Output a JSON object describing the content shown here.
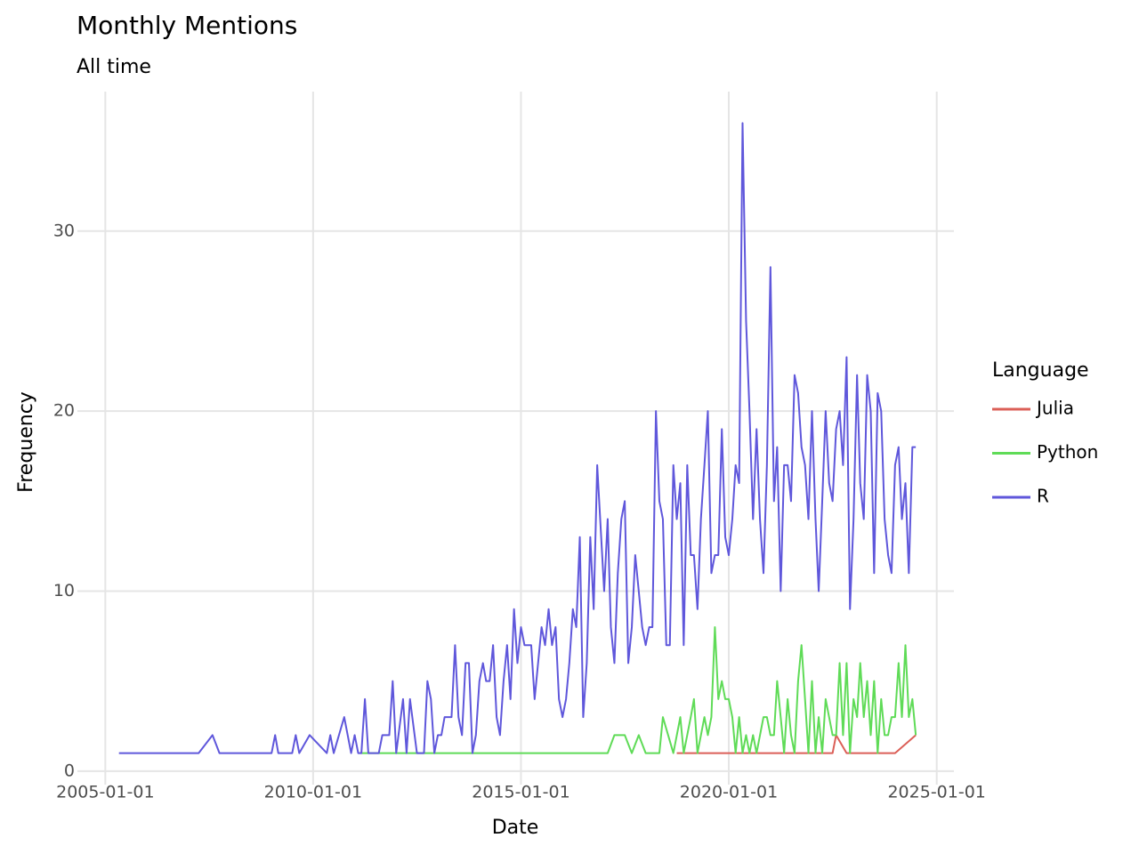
{
  "chart_data": {
    "type": "line",
    "title": "Monthly Mentions",
    "subtitle": "All time",
    "x_label": "Date",
    "y_label": "Frequency",
    "legend_title": "Language",
    "legend_position": "right",
    "grid": true,
    "xlim": [
      "2004-05-01",
      "2025-06-01"
    ],
    "xticks": [
      "2005-01-01",
      "2010-01-01",
      "2015-01-01",
      "2020-01-01",
      "2025-01-01"
    ],
    "ylim": [
      -0.75,
      37.75
    ],
    "yticks": [
      0,
      10,
      20,
      30
    ],
    "series": [
      {
        "name": "Julia",
        "color": "#db5f57",
        "x": [
          "2018-10-01",
          "2022-07-01",
          "2022-08-01",
          "2022-11-01",
          "2024-01-01",
          "2024-07-01"
        ],
        "values": [
          1,
          1,
          2,
          1,
          1,
          2
        ]
      },
      {
        "name": "Python",
        "color": "#5fdb57",
        "x": [
          "2011-03-01",
          "2017-02-01",
          "2017-04-01",
          "2017-07-01",
          "2017-09-01",
          "2017-11-01",
          "2018-01-01",
          "2018-05-01",
          "2018-06-01",
          "2018-09-01",
          "2018-11-01",
          "2018-12-01",
          "2019-02-01",
          "2019-03-01",
          "2019-04-01",
          "2019-06-01",
          "2019-07-01",
          "2019-08-01",
          "2019-09-01",
          "2019-10-01",
          "2019-11-01",
          "2019-12-01",
          "2020-01-01",
          "2020-02-01",
          "2020-03-01",
          "2020-04-01",
          "2020-05-01",
          "2020-06-01",
          "2020-07-01",
          "2020-08-01",
          "2020-09-01",
          "2020-11-01",
          "2020-12-01",
          "2021-01-01",
          "2021-02-01",
          "2021-03-01",
          "2021-04-01",
          "2021-05-01",
          "2021-06-01",
          "2021-07-01",
          "2021-08-01",
          "2021-09-01",
          "2021-10-01",
          "2021-11-01",
          "2021-12-01",
          "2022-01-01",
          "2022-02-01",
          "2022-03-01",
          "2022-04-01",
          "2022-05-01",
          "2022-07-01",
          "2022-08-01",
          "2022-09-01",
          "2022-10-01",
          "2022-11-01",
          "2022-12-01",
          "2023-01-01",
          "2023-02-01",
          "2023-03-01",
          "2023-04-01",
          "2023-05-01",
          "2023-06-01",
          "2023-07-01",
          "2023-08-01",
          "2023-09-01",
          "2023-10-01",
          "2023-11-01",
          "2023-12-01",
          "2024-01-01",
          "2024-02-01",
          "2024-03-01",
          "2024-04-01",
          "2024-05-01",
          "2024-06-01",
          "2024-07-01"
        ],
        "values": [
          1,
          1,
          2,
          2,
          1,
          2,
          1,
          1,
          3,
          1,
          3,
          1,
          3,
          4,
          1,
          3,
          2,
          3,
          8,
          4,
          5,
          4,
          4,
          3,
          1,
          3,
          1,
          2,
          1,
          2,
          1,
          3,
          3,
          2,
          2,
          5,
          3,
          1,
          4,
          2,
          1,
          5,
          7,
          4,
          1,
          5,
          1,
          3,
          1,
          4,
          2,
          2,
          6,
          2,
          6,
          1,
          4,
          3,
          6,
          3,
          5,
          2,
          5,
          1,
          4,
          2,
          2,
          3,
          3,
          6,
          3,
          7,
          3,
          4,
          2
        ]
      },
      {
        "name": "R",
        "color": "#5f57db",
        "x": [
          "2005-05-01",
          "2007-04-01",
          "2007-08-01",
          "2007-10-01",
          "2009-01-01",
          "2009-02-01",
          "2009-03-01",
          "2009-07-01",
          "2009-08-01",
          "2009-09-01",
          "2009-12-01",
          "2010-05-01",
          "2010-06-01",
          "2010-07-01",
          "2010-10-01",
          "2010-12-01",
          "2011-01-01",
          "2011-02-01",
          "2011-03-01",
          "2011-04-01",
          "2011-05-01",
          "2011-08-01",
          "2011-09-01",
          "2011-11-01",
          "2011-12-01",
          "2012-01-01",
          "2012-03-01",
          "2012-04-01",
          "2012-05-01",
          "2012-07-01",
          "2012-09-01",
          "2012-10-01",
          "2012-11-01",
          "2012-12-01",
          "2013-01-01",
          "2013-02-01",
          "2013-03-01",
          "2013-05-01",
          "2013-06-01",
          "2013-07-01",
          "2013-08-01",
          "2013-09-01",
          "2013-10-01",
          "2013-11-01",
          "2013-12-01",
          "2014-01-01",
          "2014-02-01",
          "2014-03-01",
          "2014-04-01",
          "2014-05-01",
          "2014-06-01",
          "2014-07-01",
          "2014-08-01",
          "2014-09-01",
          "2014-10-01",
          "2014-11-01",
          "2014-12-01",
          "2015-01-01",
          "2015-02-01",
          "2015-04-01",
          "2015-05-01",
          "2015-07-01",
          "2015-08-01",
          "2015-09-01",
          "2015-10-01",
          "2015-11-01",
          "2015-12-01",
          "2016-01-01",
          "2016-02-01",
          "2016-03-01",
          "2016-04-01",
          "2016-05-01",
          "2016-06-01",
          "2016-07-01",
          "2016-08-01",
          "2016-09-01",
          "2016-10-01",
          "2016-11-01",
          "2017-01-01",
          "2017-02-01",
          "2017-03-01",
          "2017-04-01",
          "2017-05-01",
          "2017-06-01",
          "2017-07-01",
          "2017-08-01",
          "2017-09-01",
          "2017-10-01",
          "2017-11-01",
          "2017-12-01",
          "2018-01-01",
          "2018-02-01",
          "2018-03-01",
          "2018-04-01",
          "2018-05-01",
          "2018-06-01",
          "2018-07-01",
          "2018-08-01",
          "2018-09-01",
          "2018-10-01",
          "2018-11-01",
          "2018-12-01",
          "2019-01-01",
          "2019-02-01",
          "2019-03-01",
          "2019-04-01",
          "2019-05-01",
          "2019-06-01",
          "2019-07-01",
          "2019-08-01",
          "2019-09-01",
          "2019-10-01",
          "2019-11-01",
          "2019-12-01",
          "2020-01-01",
          "2020-02-01",
          "2020-03-01",
          "2020-04-01",
          "2020-05-01",
          "2020-06-01",
          "2020-07-01",
          "2020-08-01",
          "2020-09-01",
          "2020-10-01",
          "2020-11-01",
          "2020-12-01",
          "2021-01-01",
          "2021-02-01",
          "2021-03-01",
          "2021-04-01",
          "2021-05-01",
          "2021-06-01",
          "2021-07-01",
          "2021-08-01",
          "2021-09-01",
          "2021-10-01",
          "2021-11-01",
          "2021-12-01",
          "2022-01-01",
          "2022-02-01",
          "2022-03-01",
          "2022-04-01",
          "2022-05-01",
          "2022-06-01",
          "2022-07-01",
          "2022-08-01",
          "2022-09-01",
          "2022-10-01",
          "2022-11-01",
          "2022-12-01",
          "2023-01-01",
          "2023-02-01",
          "2023-03-01",
          "2023-04-01",
          "2023-05-01",
          "2023-06-01",
          "2023-07-01",
          "2023-08-01",
          "2023-09-01",
          "2023-10-01",
          "2023-11-01",
          "2023-12-01",
          "2024-01-01",
          "2024-02-01",
          "2024-03-01",
          "2024-04-01",
          "2024-05-01",
          "2024-06-01",
          "2024-07-01"
        ],
        "values": [
          1,
          1,
          2,
          1,
          1,
          2,
          1,
          1,
          2,
          1,
          2,
          1,
          2,
          1,
          3,
          1,
          2,
          1,
          1,
          4,
          1,
          1,
          2,
          2,
          5,
          1,
          4,
          1,
          4,
          1,
          1,
          5,
          4,
          1,
          2,
          2,
          3,
          3,
          7,
          3,
          2,
          6,
          6,
          1,
          2,
          5,
          6,
          5,
          5,
          7,
          3,
          2,
          5,
          7,
          4,
          9,
          6,
          8,
          7,
          7,
          4,
          8,
          7,
          9,
          7,
          8,
          4,
          3,
          4,
          6,
          9,
          8,
          13,
          3,
          6,
          13,
          9,
          17,
          10,
          14,
          8,
          6,
          11,
          14,
          15,
          6,
          8,
          12,
          10,
          8,
          7,
          8,
          8,
          20,
          15,
          14,
          7,
          7,
          17,
          14,
          16,
          7,
          17,
          12,
          12,
          9,
          14,
          17,
          20,
          11,
          12,
          12,
          19,
          13,
          12,
          14,
          17,
          16,
          36,
          25,
          20,
          14,
          19,
          14,
          11,
          17,
          28,
          15,
          18,
          10,
          17,
          17,
          15,
          22,
          21,
          18,
          17,
          14,
          20,
          14,
          10,
          15,
          20,
          16,
          15,
          19,
          20,
          17,
          23,
          9,
          14,
          22,
          16,
          14,
          22,
          20,
          11,
          21,
          20,
          14,
          12,
          11,
          17,
          18,
          14,
          16,
          11,
          18,
          18
        ]
      }
    ]
  }
}
